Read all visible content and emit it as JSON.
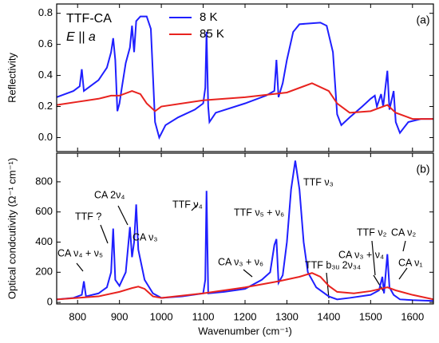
{
  "chart_data": [
    {
      "type": "line",
      "title": "TTF-CA",
      "subtitle": "E || a",
      "panel_label": "(a)",
      "y_label": "Reflectivity",
      "xlim": [
        750,
        1650
      ],
      "xticks": [
        800,
        900,
        1000,
        1100,
        1200,
        1300,
        1400,
        1500,
        1600
      ],
      "ylim": [
        -0.09,
        0.86
      ],
      "yticks": [
        {
          "value": 0,
          "label": "0.0"
        },
        {
          "value": 0.2,
          "label": "0.2"
        },
        {
          "value": 0.4,
          "label": "0.4"
        },
        {
          "value": 0.6,
          "label": "0.6"
        },
        {
          "value": 0.8,
          "label": "0.8"
        }
      ],
      "series": [
        {
          "name": "8 K",
          "color": "#1f1fff",
          "x": [
            750,
            770,
            790,
            805,
            810,
            815,
            830,
            850,
            870,
            880,
            885,
            890,
            895,
            900,
            905,
            915,
            925,
            930,
            935,
            940,
            950,
            965,
            975,
            985,
            995,
            1010,
            1040,
            1080,
            1100,
            1105,
            1108,
            1112,
            1115,
            1130,
            1200,
            1250,
            1270,
            1275,
            1280,
            1290,
            1300,
            1315,
            1330,
            1380,
            1395,
            1410,
            1420,
            1430,
            1450,
            1480,
            1500,
            1510,
            1515,
            1525,
            1530,
            1540,
            1545,
            1555,
            1560,
            1570,
            1590,
            1620,
            1650
          ],
          "values": [
            0.26,
            0.28,
            0.3,
            0.33,
            0.44,
            0.3,
            0.33,
            0.37,
            0.45,
            0.55,
            0.64,
            0.5,
            0.17,
            0.22,
            0.31,
            0.48,
            0.58,
            0.72,
            0.55,
            0.75,
            0.78,
            0.78,
            0.7,
            0.1,
            0.0,
            0.08,
            0.13,
            0.18,
            0.22,
            0.32,
            0.68,
            0.2,
            0.1,
            0.16,
            0.22,
            0.27,
            0.3,
            0.5,
            0.26,
            0.35,
            0.5,
            0.68,
            0.73,
            0.74,
            0.72,
            0.55,
            0.15,
            0.08,
            0.13,
            0.2,
            0.25,
            0.27,
            0.2,
            0.28,
            0.2,
            0.43,
            0.18,
            0.3,
            0.1,
            0.03,
            0.1,
            0.12,
            0.12
          ]
        },
        {
          "name": "85 K",
          "color": "#e8231f",
          "x": [
            750,
            800,
            850,
            880,
            900,
            930,
            950,
            965,
            985,
            1000,
            1100,
            1200,
            1300,
            1360,
            1400,
            1420,
            1450,
            1500,
            1540,
            1560,
            1600,
            1650
          ],
          "values": [
            0.21,
            0.23,
            0.25,
            0.27,
            0.27,
            0.3,
            0.28,
            0.22,
            0.17,
            0.2,
            0.24,
            0.26,
            0.29,
            0.35,
            0.3,
            0.22,
            0.16,
            0.17,
            0.21,
            0.16,
            0.12,
            0.12
          ]
        }
      ]
    },
    {
      "type": "line",
      "panel_label": "(b)",
      "x_label": "Wavenumber (cm⁻¹)",
      "y_label": "Optical condcutivity (Ω⁻¹ cm⁻¹)",
      "xlim": [
        750,
        1650
      ],
      "xticks": [
        800,
        900,
        1000,
        1100,
        1200,
        1300,
        1400,
        1500,
        1600
      ],
      "ylim": [
        -10,
        990
      ],
      "yticks": [
        0,
        200,
        400,
        600,
        800
      ],
      "annotations": [
        "CA ν₄ + ν₅",
        "TTF ?",
        "CA 2ν₄",
        "CA ν₃",
        "TTF ν₄",
        "CA ν₃ + ν₆",
        "TTF ν₅ + ν₆",
        "TTF ν₃",
        "TTF b₃ᵤ 2ν₃₄",
        "CA ν₃ + ν₄",
        "TTF ν₂",
        "CA ν₂",
        "CA ν₁"
      ],
      "series": [
        {
          "color": "#1f1fff",
          "x": [
            750,
            790,
            810,
            815,
            820,
            850,
            870,
            880,
            885,
            890,
            900,
            915,
            925,
            930,
            935,
            940,
            945,
            960,
            980,
            1000,
            1050,
            1100,
            1105,
            1108,
            1112,
            1150,
            1200,
            1240,
            1260,
            1270,
            1275,
            1280,
            1290,
            1300,
            1310,
            1320,
            1330,
            1340,
            1350,
            1370,
            1400,
            1420,
            1450,
            1500,
            1520,
            1528,
            1532,
            1540,
            1545,
            1555,
            1570,
            1600,
            1650
          ],
          "values": [
            20,
            30,
            50,
            140,
            40,
            60,
            100,
            200,
            490,
            150,
            110,
            200,
            500,
            300,
            400,
            650,
            350,
            150,
            60,
            30,
            40,
            60,
            150,
            740,
            60,
            70,
            90,
            150,
            200,
            380,
            420,
            130,
            180,
            400,
            750,
            940,
            750,
            400,
            200,
            100,
            40,
            20,
            30,
            50,
            80,
            170,
            60,
            320,
            100,
            50,
            20,
            15,
            10
          ]
        },
        {
          "color": "#e8231f",
          "x": [
            750,
            850,
            900,
            930,
            945,
            960,
            980,
            1000,
            1100,
            1200,
            1280,
            1330,
            1360,
            1380,
            1400,
            1420,
            1460,
            1500,
            1540,
            1560,
            1600,
            1650
          ],
          "values": [
            20,
            40,
            70,
            95,
            105,
            90,
            40,
            30,
            60,
            100,
            140,
            170,
            195,
            170,
            110,
            70,
            60,
            75,
            100,
            80,
            50,
            20
          ]
        }
      ]
    }
  ]
}
